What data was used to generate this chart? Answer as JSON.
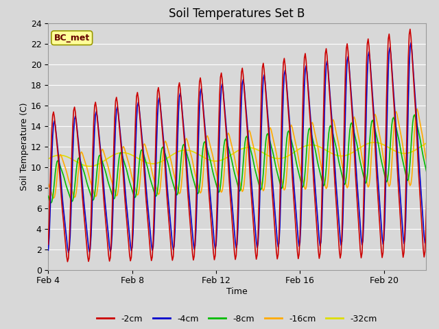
{
  "title": "Soil Temperatures Set B",
  "xlabel": "Time",
  "ylabel": "Soil Temperature (C)",
  "ylim": [
    0,
    24
  ],
  "yticks": [
    0,
    2,
    4,
    6,
    8,
    10,
    12,
    14,
    16,
    18,
    20,
    22,
    24
  ],
  "xtick_labels": [
    "Feb 4",
    "Feb 8",
    "Feb 12",
    "Feb 16",
    "Feb 20"
  ],
  "xtick_positions": [
    4,
    8,
    12,
    16,
    20
  ],
  "legend_labels": [
    "-2cm",
    "-4cm",
    "-8cm",
    "-16cm",
    "-32cm"
  ],
  "legend_colors": [
    "#cc0000",
    "#0000cc",
    "#00bb00",
    "#ffaa00",
    "#dddd00"
  ],
  "background_color": "#d8d8d8",
  "plot_bg_color": "#d8d8d8",
  "grid_color": "#ffffff",
  "annotation_text": "BC_met",
  "annotation_bg": "#ffff99",
  "annotation_border": "#999900",
  "title_fontsize": 12,
  "label_fontsize": 9
}
